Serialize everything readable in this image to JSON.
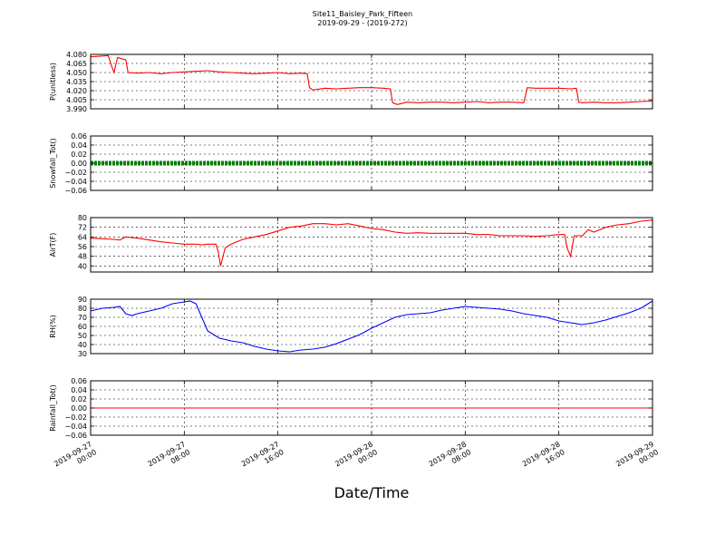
{
  "chart_data": {
    "type": "line",
    "title": "Site11_Baisley_Park_Fifteen",
    "subtitle": "2019-09-29 - (2019-272)",
    "xlabel": "Date/Time",
    "x_range": [
      "2019-09-27 00:00",
      "2019-09-29 00:00"
    ],
    "x_ticks": [
      {
        "label1": "2019-09-27",
        "label2": "00:00",
        "hours": 0
      },
      {
        "label1": "2019-09-27",
        "label2": "08:00",
        "hours": 8
      },
      {
        "label1": "2019-09-27",
        "label2": "16:00",
        "hours": 16
      },
      {
        "label1": "2019-09-28",
        "label2": "00:00",
        "hours": 24
      },
      {
        "label1": "2019-09-28",
        "label2": "08:00",
        "hours": 32
      },
      {
        "label1": "2019-09-28",
        "label2": "16:00",
        "hours": 40
      },
      {
        "label1": "2019-09-29",
        "label2": "00:00",
        "hours": 48
      }
    ],
    "grid": true,
    "panels": [
      {
        "ylabel": "P(unitless)",
        "ylim": [
          3.99,
          4.08
        ],
        "yticks": [
          "3.990",
          "4.005",
          "4.020",
          "4.035",
          "4.050",
          "4.065",
          "4.080"
        ],
        "color": "#ff0000",
        "style": "line",
        "points": [
          [
            0,
            4.076
          ],
          [
            1.5,
            4.078
          ],
          [
            1.8,
            4.06
          ],
          [
            2.0,
            4.05
          ],
          [
            2.3,
            4.075
          ],
          [
            2.6,
            4.073
          ],
          [
            3.0,
            4.071
          ],
          [
            3.2,
            4.05
          ],
          [
            4,
            4.049
          ],
          [
            5,
            4.05
          ],
          [
            6,
            4.048
          ],
          [
            7,
            4.05
          ],
          [
            8,
            4.051
          ],
          [
            9,
            4.052
          ],
          [
            10,
            4.053
          ],
          [
            11,
            4.051
          ],
          [
            12,
            4.05
          ],
          [
            13,
            4.049
          ],
          [
            14,
            4.048
          ],
          [
            15,
            4.049
          ],
          [
            16,
            4.05
          ],
          [
            17,
            4.048
          ],
          [
            18,
            4.049
          ],
          [
            18.5,
            4.048
          ],
          [
            18.7,
            4.025
          ],
          [
            19,
            4.021
          ],
          [
            20,
            4.024
          ],
          [
            21,
            4.023
          ],
          [
            22,
            4.024
          ],
          [
            23,
            4.025
          ],
          [
            24,
            4.025
          ],
          [
            25,
            4.024
          ],
          [
            25.6,
            4.023
          ],
          [
            25.8,
            4.0
          ],
          [
            26.2,
            3.997
          ],
          [
            27,
            4.001
          ],
          [
            28,
            4.0
          ],
          [
            29,
            4.001
          ],
          [
            30,
            4.001
          ],
          [
            31,
            4.0
          ],
          [
            32,
            4.001
          ],
          [
            33,
            4.002
          ],
          [
            34,
            4.0
          ],
          [
            35,
            4.001
          ],
          [
            36,
            4.001
          ],
          [
            37,
            4.0
          ],
          [
            37.3,
            4.025
          ],
          [
            38,
            4.024
          ],
          [
            39,
            4.024
          ],
          [
            40,
            4.024
          ],
          [
            41,
            4.023
          ],
          [
            41.5,
            4.024
          ],
          [
            41.7,
            4.001
          ],
          [
            42,
            4.0
          ],
          [
            43,
            4.001
          ],
          [
            44,
            4.0
          ],
          [
            45,
            4.0
          ],
          [
            46,
            4.001
          ],
          [
            47,
            4.002
          ],
          [
            48,
            4.003
          ]
        ]
      },
      {
        "ylabel": "Snowfall_Tot()",
        "ylim": [
          -0.06,
          0.06
        ],
        "yticks": [
          "−0.06",
          "−0.04",
          "−0.02",
          "0.00",
          "0.02",
          "0.04",
          "0.06"
        ],
        "color": "#008000",
        "style": "thick",
        "points": [
          [
            0,
            0.0
          ],
          [
            48,
            0.0
          ]
        ]
      },
      {
        "ylabel": "AirT(F)",
        "ylim": [
          35,
          80
        ],
        "yticks": [
          "40",
          "48",
          "56",
          "64",
          "72",
          "80"
        ],
        "color": "#ff0000",
        "style": "line",
        "points": [
          [
            0,
            63
          ],
          [
            1,
            62.5
          ],
          [
            2,
            62
          ],
          [
            2.5,
            61.5
          ],
          [
            3,
            64
          ],
          [
            4,
            63
          ],
          [
            5,
            61.5
          ],
          [
            6,
            60
          ],
          [
            7,
            59
          ],
          [
            8,
            58
          ],
          [
            9,
            58
          ],
          [
            9.5,
            57.5
          ],
          [
            10,
            58
          ],
          [
            10.7,
            58
          ],
          [
            10.9,
            52
          ],
          [
            11.1,
            40
          ],
          [
            11.5,
            55
          ],
          [
            12,
            58
          ],
          [
            13,
            62
          ],
          [
            14,
            64
          ],
          [
            15,
            66
          ],
          [
            16,
            69
          ],
          [
            17,
            72
          ],
          [
            18,
            73
          ],
          [
            19,
            75
          ],
          [
            20,
            75
          ],
          [
            21,
            74
          ],
          [
            22,
            75
          ],
          [
            23,
            73
          ],
          [
            24,
            71
          ],
          [
            25,
            70
          ],
          [
            26,
            68
          ],
          [
            27,
            67
          ],
          [
            28,
            67.5
          ],
          [
            29,
            67
          ],
          [
            30,
            67
          ],
          [
            31,
            67
          ],
          [
            32,
            67
          ],
          [
            33,
            66
          ],
          [
            34,
            66
          ],
          [
            35,
            65
          ],
          [
            36,
            65
          ],
          [
            37,
            65
          ],
          [
            38,
            64.5
          ],
          [
            39,
            65
          ],
          [
            40,
            66
          ],
          [
            40.5,
            66
          ],
          [
            40.7,
            55
          ],
          [
            41,
            48
          ],
          [
            41.3,
            65
          ],
          [
            42,
            65
          ],
          [
            42.5,
            70
          ],
          [
            43,
            68
          ],
          [
            44,
            72
          ],
          [
            45,
            74
          ],
          [
            46,
            75
          ],
          [
            47,
            77
          ],
          [
            48,
            78
          ]
        ]
      },
      {
        "ylabel": "RH(%)",
        "ylim": [
          30,
          90
        ],
        "yticks": [
          "30",
          "40",
          "50",
          "60",
          "70",
          "80",
          "90"
        ],
        "color": "#0000ff",
        "style": "line",
        "points": [
          [
            0,
            77
          ],
          [
            1,
            80
          ],
          [
            2,
            81
          ],
          [
            2.5,
            82
          ],
          [
            3,
            74
          ],
          [
            3.5,
            72
          ],
          [
            4,
            74
          ],
          [
            5,
            77
          ],
          [
            6,
            80
          ],
          [
            7,
            85
          ],
          [
            8,
            87
          ],
          [
            8.5,
            88
          ],
          [
            9,
            85
          ],
          [
            9.5,
            70
          ],
          [
            10,
            55
          ],
          [
            11,
            47
          ],
          [
            12,
            44
          ],
          [
            13,
            42
          ],
          [
            14,
            38
          ],
          [
            15,
            35
          ],
          [
            16,
            33
          ],
          [
            17,
            32
          ],
          [
            18,
            34
          ],
          [
            19,
            35
          ],
          [
            20,
            37
          ],
          [
            21,
            41
          ],
          [
            22,
            46
          ],
          [
            23,
            51
          ],
          [
            24,
            58
          ],
          [
            25,
            64
          ],
          [
            26,
            70
          ],
          [
            27,
            73
          ],
          [
            28,
            74
          ],
          [
            29,
            75
          ],
          [
            30,
            78
          ],
          [
            31,
            80
          ],
          [
            32,
            82
          ],
          [
            33,
            81
          ],
          [
            34,
            80
          ],
          [
            35,
            79
          ],
          [
            36,
            77
          ],
          [
            37,
            74
          ],
          [
            38,
            72
          ],
          [
            39,
            70
          ],
          [
            40,
            66
          ],
          [
            41,
            64
          ],
          [
            42,
            62
          ],
          [
            43,
            64
          ],
          [
            44,
            67
          ],
          [
            45,
            71
          ],
          [
            46,
            75
          ],
          [
            47,
            80
          ],
          [
            48,
            88
          ]
        ]
      },
      {
        "ylabel": "Rainfall_Tot()",
        "ylim": [
          -0.06,
          0.06
        ],
        "yticks": [
          "−0.06",
          "−0.04",
          "−0.02",
          "0.00",
          "0.02",
          "0.04",
          "0.06"
        ],
        "color": "#ff0000",
        "style": "line",
        "points": [
          [
            0,
            0.0
          ],
          [
            48,
            0.0
          ]
        ]
      }
    ]
  }
}
